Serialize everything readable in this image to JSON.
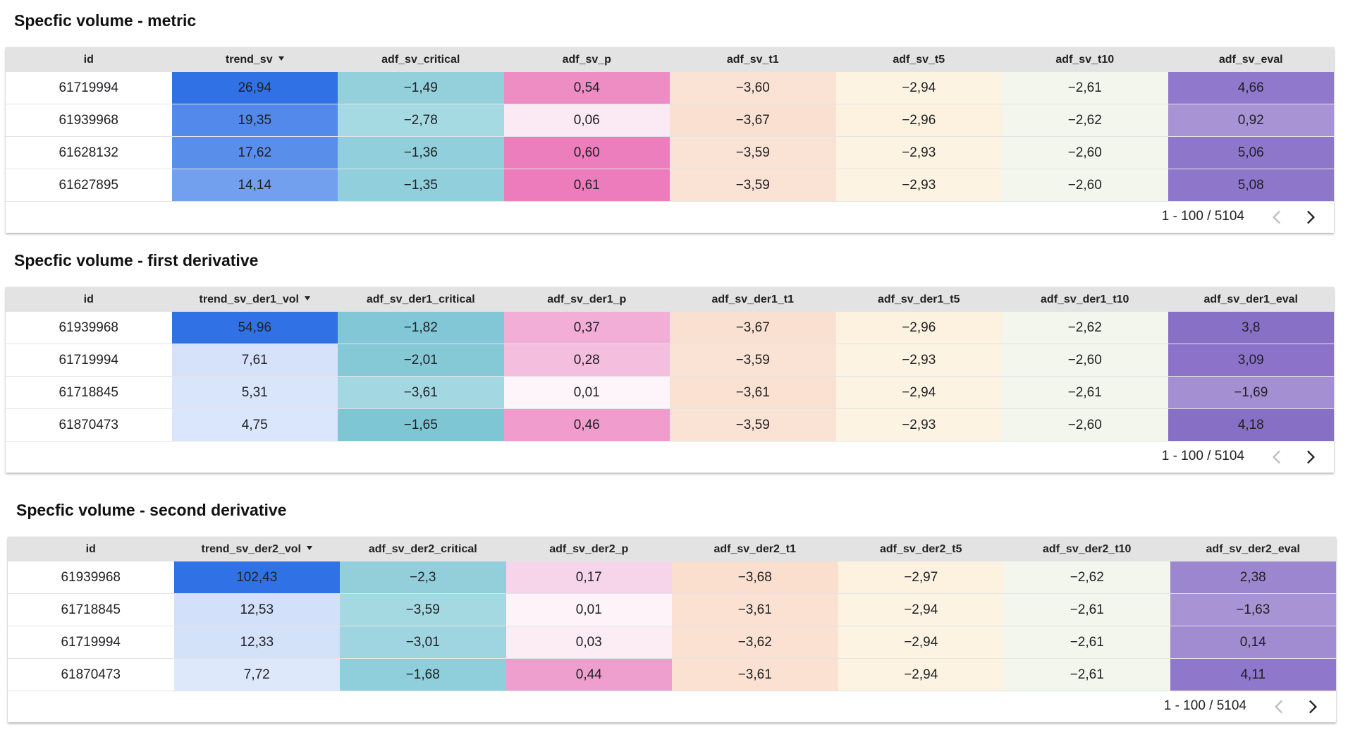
{
  "pager_range": "1 - 100 / 5104",
  "sections": [
    {
      "title": "Specfic volume - metric",
      "columns": [
        "id",
        "trend_sv",
        "adf_sv_critical",
        "adf_sv_p",
        "adf_sv_t1",
        "adf_sv_t5",
        "adf_sv_t10",
        "adf_sv_eval"
      ],
      "rows": [
        {
          "cells": [
            "61719994",
            "26,94",
            "−1,49",
            "0,54",
            "−3,60",
            "−2,94",
            "−2,61",
            "4,66"
          ],
          "colors": [
            "#ffffff",
            "#3071e6",
            "#93d0dc",
            "#ee8cc4",
            "#fae2d4",
            "#fdf3e3",
            "#f3f6ec",
            "#9079cc"
          ]
        },
        {
          "cells": [
            "61939968",
            "19,35",
            "−2,78",
            "0,06",
            "−3,67",
            "−2,96",
            "−2,62",
            "0,92"
          ],
          "colors": [
            "#ffffff",
            "#5289ea",
            "#a6dae3",
            "#fbe9f3",
            "#fae0d0",
            "#fdf2e0",
            "#f3f6ec",
            "#a893d4"
          ]
        },
        {
          "cells": [
            "61628132",
            "17,62",
            "−1,36",
            "0,60",
            "−3,59",
            "−2,93",
            "−2,60",
            "5,06"
          ],
          "colors": [
            "#ffffff",
            "#5a8eeb",
            "#92cfdc",
            "#ec7ebd",
            "#fae2d4",
            "#fdf3e3",
            "#f3f6ec",
            "#8e76cb"
          ]
        },
        {
          "cells": [
            "61627895",
            "14,14",
            "−1,35",
            "0,61",
            "−3,59",
            "−2,93",
            "−2,60",
            "5,08"
          ],
          "colors": [
            "#ffffff",
            "#729fee",
            "#91cfdc",
            "#ec7cbc",
            "#fae2d4",
            "#fdf3e3",
            "#f3f6ec",
            "#8e76cb"
          ]
        }
      ]
    },
    {
      "title": "Specfic volume - first derivative",
      "columns": [
        "id",
        "trend_sv_der1_vol",
        "adf_sv_der1_critical",
        "adf_sv_der1_p",
        "adf_sv_der1_t1",
        "adf_sv_der1_t5",
        "adf_sv_der1_t10",
        "adf_sv_der1_eval"
      ],
      "rows": [
        {
          "cells": [
            "61939968",
            "54,96",
            "−1,82",
            "0,37",
            "−3,67",
            "−2,96",
            "−2,62",
            "3,8"
          ],
          "colors": [
            "#ffffff",
            "#3071e6",
            "#82c7d6",
            "#f2aed6",
            "#fae0d0",
            "#fdf2e0",
            "#f3f6ec",
            "#8970c7"
          ]
        },
        {
          "cells": [
            "61719994",
            "7,61",
            "−2,01",
            "0,28",
            "−3,59",
            "−2,93",
            "−2,60",
            "3,09"
          ],
          "colors": [
            "#ffffff",
            "#d5e2f9",
            "#85c9d7",
            "#f4bfdf",
            "#fae2d4",
            "#fdf3e3",
            "#f3f6ec",
            "#8c73c9"
          ]
        },
        {
          "cells": [
            "61718845",
            "5,31",
            "−3,61",
            "0,01",
            "−3,61",
            "−2,94",
            "−2,61",
            "−1,69"
          ],
          "colors": [
            "#ffffff",
            "#d9e5fa",
            "#a3d7e1",
            "#fdf5f9",
            "#fae1d2",
            "#fdf3e2",
            "#f3f6ec",
            "#a48fd2"
          ]
        },
        {
          "cells": [
            "61870473",
            "4,75",
            "−1,65",
            "0,46",
            "−3,59",
            "−2,93",
            "−2,60",
            "4,18"
          ],
          "colors": [
            "#ffffff",
            "#dae6fb",
            "#7fc6d5",
            "#f09dcd",
            "#fae2d4",
            "#fdf3e3",
            "#f3f6ec",
            "#886fc6"
          ]
        }
      ]
    },
    {
      "title": "Specfic volume - second derivative",
      "columns": [
        "id",
        "trend_sv_der2_vol",
        "adf_sv_der2_critical",
        "adf_sv_der2_p",
        "adf_sv_der2_t1",
        "adf_sv_der2_t5",
        "adf_sv_der2_t10",
        "adf_sv_der2_eval"
      ],
      "rows": [
        {
          "cells": [
            "61939968",
            "102,43",
            "−2,3",
            "0,17",
            "−3,68",
            "−2,97",
            "−2,62",
            "2,38"
          ],
          "colors": [
            "#ffffff",
            "#3071e6",
            "#93cfdb",
            "#f6d4e9",
            "#fadfcf",
            "#fdf2e0",
            "#f3f6ec",
            "#9c86cf"
          ]
        },
        {
          "cells": [
            "61718845",
            "12,53",
            "−3,59",
            "0,01",
            "−3,61",
            "−2,94",
            "−2,61",
            "−1,63"
          ],
          "colors": [
            "#ffffff",
            "#d2e0f9",
            "#a5d9e2",
            "#fdf3f8",
            "#fae1d2",
            "#fdf3e2",
            "#f3f6ec",
            "#a893d4"
          ]
        },
        {
          "cells": [
            "61719994",
            "12,33",
            "−3,01",
            "0,03",
            "−3,62",
            "−2,94",
            "−2,61",
            "0,14"
          ],
          "colors": [
            "#ffffff",
            "#d3e1f9",
            "#9fd5e0",
            "#fcedf5",
            "#fae1d2",
            "#fdf3e2",
            "#f3f6ec",
            "#a18bd1"
          ]
        },
        {
          "cells": [
            "61870473",
            "7,72",
            "−1,68",
            "0,44",
            "−3,61",
            "−2,94",
            "−2,61",
            "4,11"
          ],
          "colors": [
            "#ffffff",
            "#dee8fb",
            "#8fcedb",
            "#ee9fcd",
            "#fae1d2",
            "#fdf3e2",
            "#f3f6ec",
            "#8f77cb"
          ]
        }
      ]
    }
  ]
}
